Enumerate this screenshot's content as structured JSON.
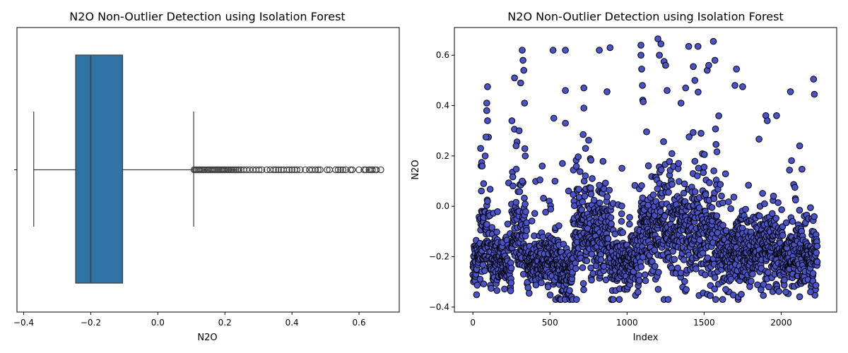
{
  "chart_data": [
    {
      "type": "box",
      "title": "N2O Non-Outlier Detection using Isolation Forest",
      "xlabel": "N2O",
      "ylabel": "",
      "xlim": [
        -0.42,
        0.72
      ],
      "xticks": [
        -0.4,
        -0.2,
        0.0,
        0.2,
        0.4,
        0.6
      ],
      "xtick_labels": [
        "−0.4",
        "−0.2",
        "0.0",
        "0.2",
        "0.4",
        "0.6"
      ],
      "box": {
        "whisker_low": -0.37,
        "q1": -0.245,
        "median": -0.2,
        "q3": -0.105,
        "whisker_high": 0.107
      },
      "outliers": [
        0.108,
        0.112,
        0.116,
        0.12,
        0.124,
        0.128,
        0.133,
        0.138,
        0.143,
        0.148,
        0.152,
        0.157,
        0.162,
        0.166,
        0.17,
        0.174,
        0.178,
        0.182,
        0.186,
        0.19,
        0.194,
        0.198,
        0.203,
        0.208,
        0.212,
        0.217,
        0.222,
        0.227,
        0.232,
        0.237,
        0.242,
        0.248,
        0.256,
        0.265,
        0.274,
        0.284,
        0.293,
        0.302,
        0.31,
        0.325,
        0.335,
        0.345,
        0.352,
        0.36,
        0.368,
        0.375,
        0.385,
        0.392,
        0.4,
        0.408,
        0.415,
        0.425,
        0.44,
        0.452,
        0.46,
        0.47,
        0.478,
        0.484,
        0.505,
        0.512,
        0.53,
        0.538,
        0.545,
        0.552,
        0.56,
        0.575,
        0.58,
        0.6,
        0.615,
        0.62,
        0.63,
        0.635,
        0.64,
        0.648,
        0.652,
        0.665
      ],
      "color": "#2e72a6",
      "grid": false
    },
    {
      "type": "scatter",
      "title": "N2O Non-Outlier Detection using Isolation Forest",
      "xlabel": "Index",
      "ylabel": "N2O",
      "xlim": [
        -120,
        2360
      ],
      "ylim": [
        -0.42,
        0.71
      ],
      "xticks": [
        0,
        500,
        1000,
        1500,
        2000
      ],
      "xtick_labels": [
        "0",
        "500",
        "1000",
        "1500",
        "2000"
      ],
      "yticks": [
        -0.4,
        -0.2,
        0.0,
        0.2,
        0.4,
        0.6
      ],
      "ytick_labels": [
        "−0.4",
        "−0.2",
        "0.0",
        "0.2",
        "0.4",
        "0.6"
      ],
      "n_points": 2235,
      "x_range": [
        0,
        2234
      ],
      "y_range": [
        -0.37,
        0.665
      ],
      "highlighted_points": [
        {
          "x": 50,
          "y": 0.23
        },
        {
          "x": 60,
          "y": 0.16
        },
        {
          "x": 70,
          "y": 0.09
        },
        {
          "x": 80,
          "y": 0.2
        },
        {
          "x": 85,
          "y": 0.275
        },
        {
          "x": 90,
          "y": 0.41
        },
        {
          "x": 90,
          "y": 0.38
        },
        {
          "x": 95,
          "y": 0.475
        },
        {
          "x": 95,
          "y": 0.34
        },
        {
          "x": 270,
          "y": 0.51
        },
        {
          "x": 280,
          "y": 0.24
        },
        {
          "x": 300,
          "y": 0.3
        },
        {
          "x": 310,
          "y": 0.49
        },
        {
          "x": 320,
          "y": 0.62
        },
        {
          "x": 325,
          "y": 0.58
        },
        {
          "x": 330,
          "y": 0.54
        },
        {
          "x": 335,
          "y": 0.41
        },
        {
          "x": 340,
          "y": 0.2
        },
        {
          "x": 520,
          "y": 0.62
        },
        {
          "x": 525,
          "y": 0.35
        },
        {
          "x": 600,
          "y": 0.62
        },
        {
          "x": 600,
          "y": 0.46
        },
        {
          "x": 600,
          "y": 0.33
        },
        {
          "x": 720,
          "y": 0.47
        },
        {
          "x": 720,
          "y": 0.39
        },
        {
          "x": 715,
          "y": 0.285
        },
        {
          "x": 820,
          "y": 0.62
        },
        {
          "x": 870,
          "y": 0.455
        },
        {
          "x": 890,
          "y": 0.63
        },
        {
          "x": 1090,
          "y": 0.64
        },
        {
          "x": 1090,
          "y": 0.6
        },
        {
          "x": 1095,
          "y": 0.545
        },
        {
          "x": 1100,
          "y": 0.48
        },
        {
          "x": 1105,
          "y": 0.415
        },
        {
          "x": 1200,
          "y": 0.665
        },
        {
          "x": 1210,
          "y": 0.6
        },
        {
          "x": 1220,
          "y": 0.645
        },
        {
          "x": 1240,
          "y": 0.575
        },
        {
          "x": 1250,
          "y": 0.56
        },
        {
          "x": 1260,
          "y": 0.46
        },
        {
          "x": 1400,
          "y": 0.635
        },
        {
          "x": 1430,
          "y": 0.555
        },
        {
          "x": 1440,
          "y": 0.5
        },
        {
          "x": 1460,
          "y": 0.635
        },
        {
          "x": 1520,
          "y": 0.54
        },
        {
          "x": 1530,
          "y": 0.56
        },
        {
          "x": 1560,
          "y": 0.655
        },
        {
          "x": 1570,
          "y": 0.58
        },
        {
          "x": 1700,
          "y": 0.48
        },
        {
          "x": 1710,
          "y": 0.545
        },
        {
          "x": 1750,
          "y": 0.475
        },
        {
          "x": 1900,
          "y": 0.36
        },
        {
          "x": 1910,
          "y": 0.34
        },
        {
          "x": 1970,
          "y": 0.36
        },
        {
          "x": 2060,
          "y": 0.455
        },
        {
          "x": 2120,
          "y": 0.24
        },
        {
          "x": 2210,
          "y": 0.505
        },
        {
          "x": 2215,
          "y": 0.445
        },
        {
          "x": 2030,
          "y": -0.34
        },
        {
          "x": 2190,
          "y": -0.34
        },
        {
          "x": 1640,
          "y": -0.33
        },
        {
          "x": 450,
          "y": 0.16
        },
        {
          "x": 320,
          "y": 0.1
        },
        {
          "x": 1380,
          "y": 0.47
        },
        {
          "x": 1350,
          "y": 0.41
        },
        {
          "x": 1480,
          "y": 0.29
        }
      ],
      "marker_color": "#4a52c9",
      "marker_edge": "#000000",
      "grid": false
    }
  ]
}
